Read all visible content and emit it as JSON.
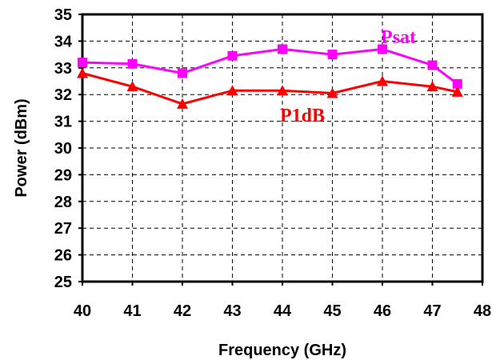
{
  "chart_data": {
    "type": "line",
    "xlabel": "Frequency (GHz)",
    "ylabel": "Power (dBm)",
    "xlim": [
      40,
      48
    ],
    "ylim": [
      25,
      35
    ],
    "xticks": [
      40,
      41,
      42,
      43,
      44,
      45,
      46,
      47,
      48
    ],
    "yticks": [
      25,
      26,
      27,
      28,
      29,
      30,
      31,
      32,
      33,
      34,
      35
    ],
    "grid": true,
    "series": [
      {
        "name": "Psat",
        "color": "#ff00ff",
        "marker": "square",
        "x": [
          40,
          41,
          42,
          43,
          44,
          45,
          46,
          47,
          47.5
        ],
        "y": [
          33.2,
          33.15,
          32.8,
          33.45,
          33.7,
          33.5,
          33.7,
          33.1,
          32.4
        ]
      },
      {
        "name": "P1dB",
        "color": "#ff0000",
        "marker": "triangle",
        "x": [
          40,
          41,
          42,
          43,
          44,
          45,
          46,
          47,
          47.5
        ],
        "y": [
          32.8,
          32.3,
          31.65,
          32.15,
          32.15,
          32.05,
          32.5,
          32.3,
          32.1
        ]
      }
    ]
  }
}
